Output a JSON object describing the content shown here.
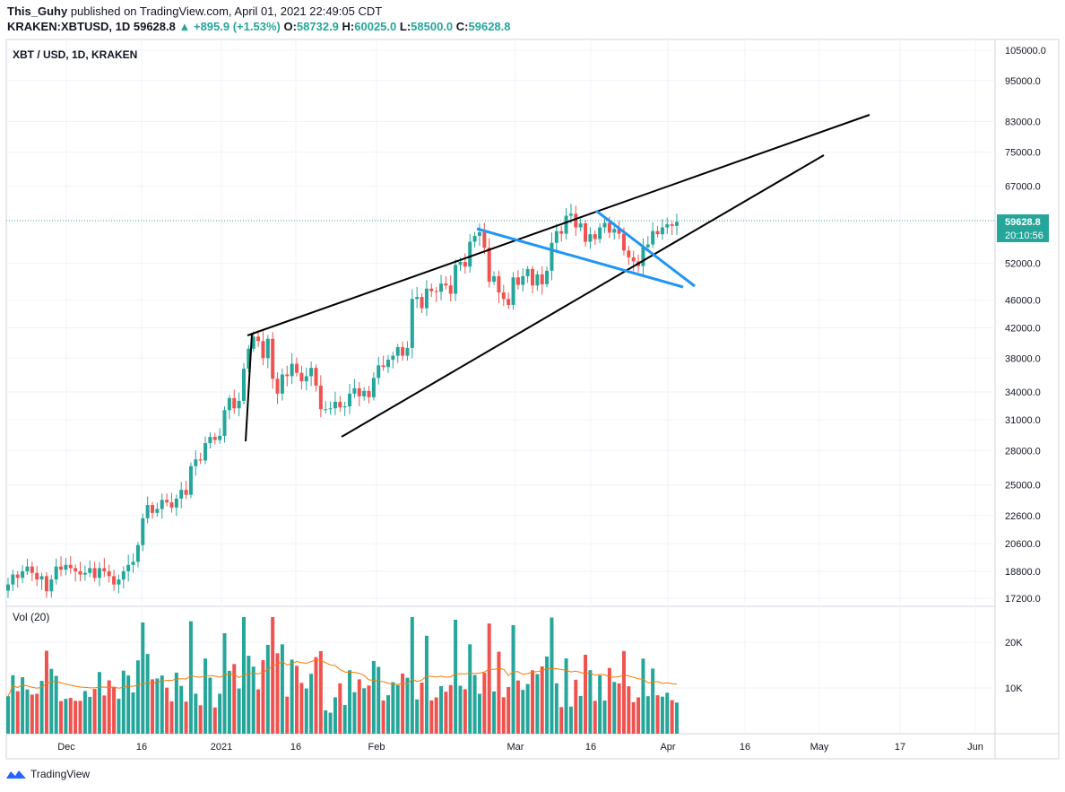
{
  "header": {
    "author": "This_Guhy",
    "published_text": "published on TradingView.com, April 01, 2021 22:49:05 CDT",
    "symbol_line": "KRAKEN:XBTUSD, 1D",
    "last": "59628.8",
    "change": "+895.9 (+1.53%)",
    "o_label": "O:",
    "o": "58732.9",
    "h_label": "H:",
    "h": "60025.0",
    "l_label": "L:",
    "l": "58500.0",
    "c_label": "C:",
    "c": "59628.8"
  },
  "footer": {
    "brand": "TradingView"
  },
  "chart_data": {
    "type": "candlestick",
    "title": "XBT / USD, 1D, KRAKEN",
    "volume_title": "Vol (20)",
    "price_scale": "log",
    "y_ticks": [
      "105000.0",
      "95000.0",
      "83000.0",
      "75000.0",
      "67000.0",
      "52000.0",
      "46000.0",
      "42000.0",
      "38000.0",
      "34000.0",
      "31000.0",
      "28000.0",
      "25000.0",
      "22600.0",
      "20600.0",
      "18800.0",
      "17200.0"
    ],
    "vol_ticks": [
      "20K",
      "10K"
    ],
    "x_ticks": [
      "Dec",
      "16",
      "2021",
      "16",
      "Feb",
      "Mar",
      "16",
      "Apr",
      "16",
      "May",
      "17",
      "Jun"
    ],
    "current_price_label": "59628.8",
    "countdown_label": "20:10:56",
    "colors": {
      "up": "#26a69a",
      "down": "#ef5350",
      "trend": "#000000",
      "wedge": "#2196f3",
      "ma": "#f57c00"
    },
    "closes": [
      18000,
      18600,
      18400,
      18800,
      19100,
      18700,
      18300,
      18500,
      17600,
      18300,
      19100,
      18900,
      19200,
      19000,
      18800,
      18600,
      18700,
      19000,
      18400,
      19000,
      18800,
      18500,
      18000,
      18300,
      18800,
      19200,
      19400,
      20500,
      22400,
      23400,
      22800,
      23100,
      23800,
      23600,
      23200,
      23900,
      24600,
      24200,
      26600,
      27200,
      27100,
      28700,
      29300,
      29000,
      29400,
      32000,
      33300,
      32200,
      33000,
      36700,
      39200,
      40800,
      40200,
      38000,
      40500,
      35500,
      33800,
      36000,
      35800,
      37300,
      36200,
      35200,
      35800,
      36800,
      34700,
      32100,
      32100,
      32200,
      32900,
      32300,
      32400,
      33800,
      34400,
      33500,
      34100,
      33400,
      35600,
      37100,
      36900,
      37800,
      38300,
      39400,
      38300,
      39300,
      46200,
      46500,
      44800,
      47800,
      47400,
      47300,
      48600,
      48300,
      47000,
      51700,
      52200,
      51400,
      55800,
      56900,
      57600,
      54700,
      48900,
      49800,
      47200,
      46200,
      45300,
      49600,
      48400,
      49800,
      51000,
      48300,
      50100,
      48500,
      50700,
      55600,
      57800,
      57300,
      60800,
      61200,
      58500,
      59300,
      55800,
      57200,
      56300,
      58500,
      59400,
      57500,
      58200,
      57300,
      54200,
      53000,
      52300,
      51500,
      54800,
      55300,
      57800,
      57200,
      58500,
      59100,
      58800,
      59600
    ]
  }
}
